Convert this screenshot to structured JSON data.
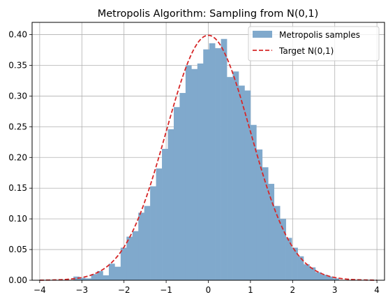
{
  "chart_data": {
    "type": "bar",
    "title": "Metropolis Algorithm: Sampling from N(0,1)",
    "xlabel": "",
    "ylabel": "",
    "xlim": [
      -4.18,
      4.18
    ],
    "ylim": [
      0,
      0.42
    ],
    "xticks": [
      -4,
      -3,
      -2,
      -1,
      0,
      1,
      2,
      3,
      4
    ],
    "xtick_labels": [
      "−4",
      "−3",
      "−2",
      "−1",
      "0",
      "1",
      "2",
      "3",
      "4"
    ],
    "yticks": [
      0.0,
      0.05,
      0.1,
      0.15,
      0.2,
      0.25,
      0.3,
      0.35,
      0.4
    ],
    "ytick_labels": [
      "0.00",
      "0.05",
      "0.10",
      "0.15",
      "0.20",
      "0.25",
      "0.30",
      "0.35",
      "0.40"
    ],
    "grid": true,
    "legend": "top-right",
    "series": [
      {
        "name": "Metropolis samples",
        "kind": "histogram",
        "color": "#80a9cc",
        "bins": [
          {
            "x0": -3.2,
            "x1": -3.06,
            "y": 0.006
          },
          {
            "x0": -3.06,
            "x1": -2.92,
            "y": 0.004
          },
          {
            "x0": -2.92,
            "x1": -2.78,
            "y": 0.003
          },
          {
            "x0": -2.78,
            "x1": -2.64,
            "y": 0.01
          },
          {
            "x0": -2.64,
            "x1": -2.5,
            "y": 0.015
          },
          {
            "x0": -2.5,
            "x1": -2.36,
            "y": 0.008
          },
          {
            "x0": -2.36,
            "x1": -2.22,
            "y": 0.027
          },
          {
            "x0": -2.22,
            "x1": -2.08,
            "y": 0.022
          },
          {
            "x0": -2.08,
            "x1": -1.94,
            "y": 0.053
          },
          {
            "x0": -1.94,
            "x1": -1.8,
            "y": 0.071
          },
          {
            "x0": -1.8,
            "x1": -1.66,
            "y": 0.08
          },
          {
            "x0": -1.66,
            "x1": -1.52,
            "y": 0.11
          },
          {
            "x0": -1.52,
            "x1": -1.38,
            "y": 0.121
          },
          {
            "x0": -1.38,
            "x1": -1.24,
            "y": 0.153
          },
          {
            "x0": -1.24,
            "x1": -1.1,
            "y": 0.182
          },
          {
            "x0": -1.1,
            "x1": -0.96,
            "y": 0.214
          },
          {
            "x0": -0.96,
            "x1": -0.82,
            "y": 0.246
          },
          {
            "x0": -0.82,
            "x1": -0.68,
            "y": 0.282
          },
          {
            "x0": -0.68,
            "x1": -0.54,
            "y": 0.305
          },
          {
            "x0": -0.54,
            "x1": -0.4,
            "y": 0.35
          },
          {
            "x0": -0.4,
            "x1": -0.26,
            "y": 0.344
          },
          {
            "x0": -0.26,
            "x1": -0.12,
            "y": 0.353
          },
          {
            "x0": -0.12,
            "x1": 0.02,
            "y": 0.376
          },
          {
            "x0": 0.02,
            "x1": 0.16,
            "y": 0.386
          },
          {
            "x0": 0.16,
            "x1": 0.3,
            "y": 0.378
          },
          {
            "x0": 0.3,
            "x1": 0.44,
            "y": 0.393
          },
          {
            "x0": 0.44,
            "x1": 0.58,
            "y": 0.331
          },
          {
            "x0": 0.58,
            "x1": 0.72,
            "y": 0.34
          },
          {
            "x0": 0.72,
            "x1": 0.86,
            "y": 0.317
          },
          {
            "x0": 0.86,
            "x1": 1.0,
            "y": 0.309
          },
          {
            "x0": 1.0,
            "x1": 1.14,
            "y": 0.253
          },
          {
            "x0": 1.14,
            "x1": 1.28,
            "y": 0.213
          },
          {
            "x0": 1.28,
            "x1": 1.42,
            "y": 0.184
          },
          {
            "x0": 1.42,
            "x1": 1.56,
            "y": 0.157
          },
          {
            "x0": 1.56,
            "x1": 1.7,
            "y": 0.121
          },
          {
            "x0": 1.7,
            "x1": 1.84,
            "y": 0.1
          },
          {
            "x0": 1.84,
            "x1": 1.98,
            "y": 0.069
          },
          {
            "x0": 1.98,
            "x1": 2.12,
            "y": 0.053
          },
          {
            "x0": 2.12,
            "x1": 2.26,
            "y": 0.039
          },
          {
            "x0": 2.26,
            "x1": 2.4,
            "y": 0.026
          },
          {
            "x0": 2.4,
            "x1": 2.54,
            "y": 0.021
          },
          {
            "x0": 2.54,
            "x1": 2.68,
            "y": 0.013
          },
          {
            "x0": 2.68,
            "x1": 2.82,
            "y": 0.009
          },
          {
            "x0": 2.82,
            "x1": 2.96,
            "y": 0.006
          },
          {
            "x0": 2.96,
            "x1": 3.1,
            "y": 0.003
          }
        ]
      },
      {
        "name": "Target N(0,1)",
        "kind": "line",
        "color": "#d62728",
        "linestyle": "dashed",
        "function": "standard normal pdf",
        "x_range": [
          -4,
          4
        ]
      }
    ]
  }
}
